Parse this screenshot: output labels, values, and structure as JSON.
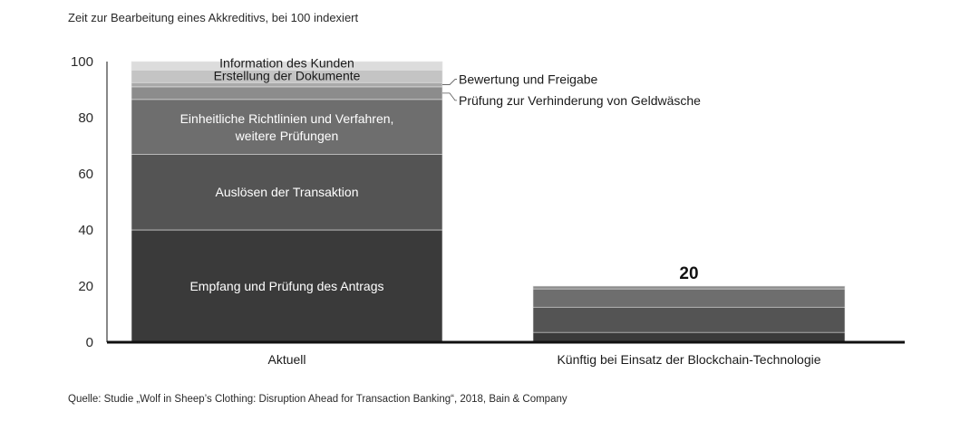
{
  "chart_data": {
    "type": "bar",
    "stacked": true,
    "subtitle": "Zeit zur Bearbeitung eines Akkreditivs, bei 100 indexiert",
    "categories": [
      "Aktuell",
      "Künftig bei Einsatz der Blockchain-Technologie"
    ],
    "ylim": [
      0,
      100
    ],
    "yticks": [
      0,
      20,
      40,
      60,
      80,
      100
    ],
    "grid": false,
    "series": [
      {
        "name": "Empfang und Prüfung des Antrags",
        "color": "#3a3a3a",
        "values": [
          40,
          3.5
        ]
      },
      {
        "name": "Auslösen der Transaktion",
        "color": "#545454",
        "values": [
          27,
          9
        ]
      },
      {
        "name": "Einheitliche Richtlinien und Verfahren, weitere Prüfungen",
        "color": "#6e6e6e",
        "values": [
          19.5,
          6.5
        ]
      },
      {
        "name": "Prüfung zur Verhinderung von Geldwäsche",
        "color": "#8c8c8c",
        "values": [
          4.5,
          1
        ]
      },
      {
        "name": "Bewertung und Freigabe",
        "color": "#a9a9a9",
        "values": [
          1.5,
          0
        ]
      },
      {
        "name": "Erstellung der Dokumente",
        "color": "#c4c4c4",
        "values": [
          4.5,
          0
        ]
      },
      {
        "name": "Information des Kunden",
        "color": "#dcdcdc",
        "values": [
          3,
          0
        ]
      }
    ],
    "totals": [
      100,
      20
    ],
    "total_labels": [
      "",
      "20"
    ],
    "segment_labels": {
      "empfang": "Empfang und Prüfung des Antrags",
      "ausloesen": "Auslösen der Transaktion",
      "richtlinien_line1": "Einheitliche Richtlinien und Verfahren,",
      "richtlinien_line2": "weitere Prüfungen",
      "geldwaesche": "Prüfung zur Verhinderung von Geldwäsche",
      "bewertung": "Bewertung und Freigabe",
      "erstellung": "Erstellung der Dokumente",
      "information": "Information des Kunden"
    }
  },
  "footer": {
    "source": "Quelle: Studie „Wolf in Sheep’s Clothing: Disruption Ahead for Transaction Banking“, 2018, Bain & Company"
  }
}
